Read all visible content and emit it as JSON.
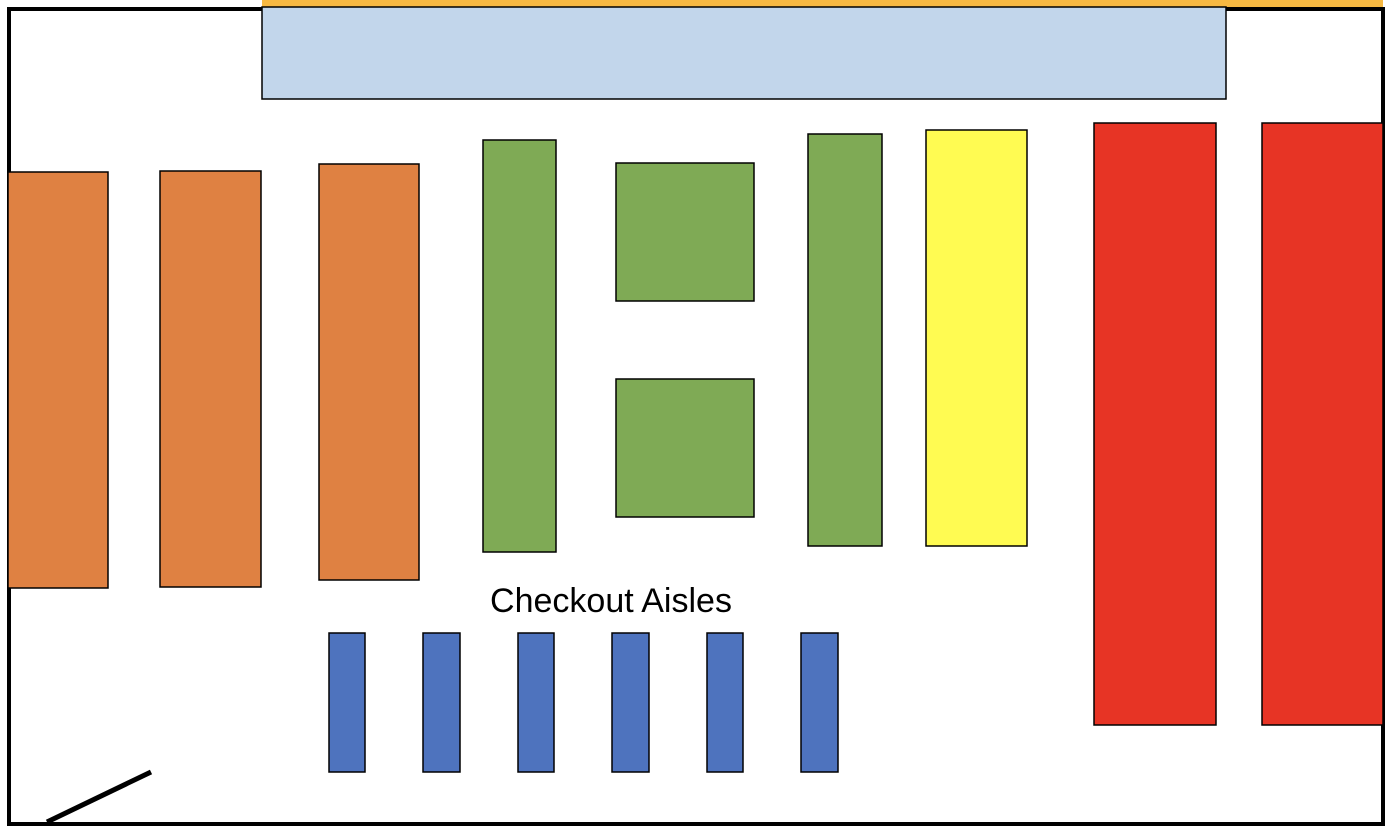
{
  "labels": {
    "checkout": "Checkout Aisles"
  },
  "colors": {
    "wall": "#000000",
    "top_strip": "#F7B942",
    "top_counter": "#C2D6EB",
    "orange_aisle": "#DF8142",
    "green_aisle": "#7FAA55",
    "yellow_aisle": "#FFFB52",
    "red_aisle": "#E73425",
    "checkout_lane": "#4E73BE"
  },
  "sections": [
    {
      "name": "top-strip",
      "color_key": "top_strip"
    },
    {
      "name": "top-counter",
      "color_key": "top_counter"
    },
    {
      "name": "orange-aisle-1",
      "color_key": "orange_aisle"
    },
    {
      "name": "orange-aisle-2",
      "color_key": "orange_aisle"
    },
    {
      "name": "orange-aisle-3",
      "color_key": "orange_aisle"
    },
    {
      "name": "green-aisle-1",
      "color_key": "green_aisle"
    },
    {
      "name": "green-display-top",
      "color_key": "green_aisle"
    },
    {
      "name": "green-display-bottom",
      "color_key": "green_aisle"
    },
    {
      "name": "green-aisle-2",
      "color_key": "green_aisle"
    },
    {
      "name": "yellow-aisle",
      "color_key": "yellow_aisle"
    },
    {
      "name": "red-aisle-1",
      "color_key": "red_aisle"
    },
    {
      "name": "red-aisle-2",
      "color_key": "red_aisle"
    },
    {
      "name": "checkout-lane-1",
      "color_key": "checkout_lane"
    },
    {
      "name": "checkout-lane-2",
      "color_key": "checkout_lane"
    },
    {
      "name": "checkout-lane-3",
      "color_key": "checkout_lane"
    },
    {
      "name": "checkout-lane-4",
      "color_key": "checkout_lane"
    },
    {
      "name": "checkout-lane-5",
      "color_key": "checkout_lane"
    },
    {
      "name": "checkout-lane-6",
      "color_key": "checkout_lane"
    }
  ]
}
